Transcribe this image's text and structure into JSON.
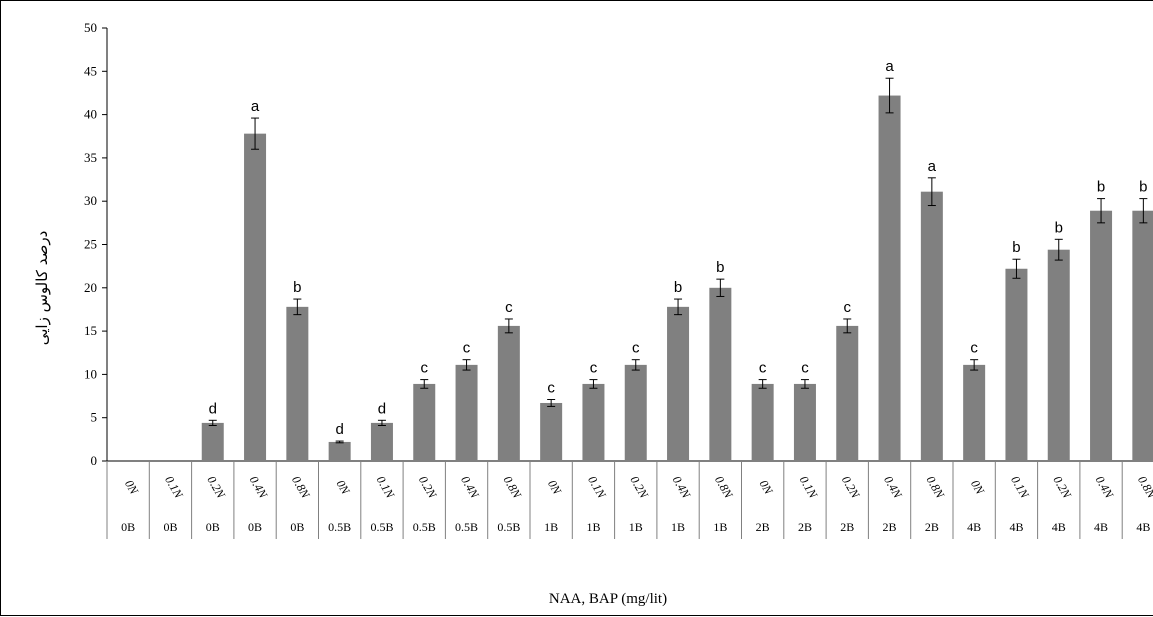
{
  "chart_data": {
    "type": "bar",
    "xlabel": "NAA, BAP (mg/lit)",
    "ylabel": "درصد کالوس زایی",
    "ylim": [
      0,
      50
    ],
    "yticks": [
      0,
      5,
      10,
      15,
      20,
      25,
      30,
      35,
      40,
      45,
      50
    ],
    "bar_color": "#808080",
    "grid": false,
    "legend": "none",
    "categories": [
      {
        "naa": "0N",
        "bap": "0B",
        "value": 0,
        "error": 0,
        "letter": ""
      },
      {
        "naa": "0.1N",
        "bap": "0B",
        "value": 0,
        "error": 0,
        "letter": ""
      },
      {
        "naa": "0.2N",
        "bap": "0B",
        "value": 4.4,
        "error": 0.3,
        "letter": "d"
      },
      {
        "naa": "0.4N",
        "bap": "0B",
        "value": 37.8,
        "error": 1.8,
        "letter": "a"
      },
      {
        "naa": "0.8N",
        "bap": "0B",
        "value": 17.8,
        "error": 0.9,
        "letter": "b"
      },
      {
        "naa": "0N",
        "bap": "0.5B",
        "value": 2.2,
        "error": 0.1,
        "letter": "d"
      },
      {
        "naa": "0.1N",
        "bap": "0.5B",
        "value": 4.4,
        "error": 0.3,
        "letter": "d"
      },
      {
        "naa": "0.2N",
        "bap": "0.5B",
        "value": 8.9,
        "error": 0.5,
        "letter": "c"
      },
      {
        "naa": "0.4N",
        "bap": "0.5B",
        "value": 11.1,
        "error": 0.6,
        "letter": "c"
      },
      {
        "naa": "0.8N",
        "bap": "0.5B",
        "value": 15.6,
        "error": 0.8,
        "letter": "c"
      },
      {
        "naa": "0N",
        "bap": "1B",
        "value": 6.7,
        "error": 0.4,
        "letter": "c"
      },
      {
        "naa": "0.1N",
        "bap": "1B",
        "value": 8.9,
        "error": 0.5,
        "letter": "c"
      },
      {
        "naa": "0.2N",
        "bap": "1B",
        "value": 11.1,
        "error": 0.6,
        "letter": "c"
      },
      {
        "naa": "0.4N",
        "bap": "1B",
        "value": 17.8,
        "error": 0.9,
        "letter": "b"
      },
      {
        "naa": "0.8N",
        "bap": "1B",
        "value": 20.0,
        "error": 1.0,
        "letter": "b"
      },
      {
        "naa": "0N",
        "bap": "2B",
        "value": 8.9,
        "error": 0.5,
        "letter": "c"
      },
      {
        "naa": "0.1N",
        "bap": "2B",
        "value": 8.9,
        "error": 0.5,
        "letter": "c"
      },
      {
        "naa": "0.2N",
        "bap": "2B",
        "value": 15.6,
        "error": 0.8,
        "letter": "c"
      },
      {
        "naa": "0.4N",
        "bap": "2B",
        "value": 42.2,
        "error": 2.0,
        "letter": "a"
      },
      {
        "naa": "0.8N",
        "bap": "2B",
        "value": 31.1,
        "error": 1.6,
        "letter": "a"
      },
      {
        "naa": "0N",
        "bap": "4B",
        "value": 11.1,
        "error": 0.6,
        "letter": "c"
      },
      {
        "naa": "0.1N",
        "bap": "4B",
        "value": 22.2,
        "error": 1.1,
        "letter": "b"
      },
      {
        "naa": "0.2N",
        "bap": "4B",
        "value": 24.4,
        "error": 1.2,
        "letter": "b"
      },
      {
        "naa": "0.4N",
        "bap": "4B",
        "value": 28.9,
        "error": 1.4,
        "letter": "b"
      },
      {
        "naa": "0.8N",
        "bap": "4B",
        "value": 28.9,
        "error": 1.4,
        "letter": "b"
      }
    ]
  }
}
